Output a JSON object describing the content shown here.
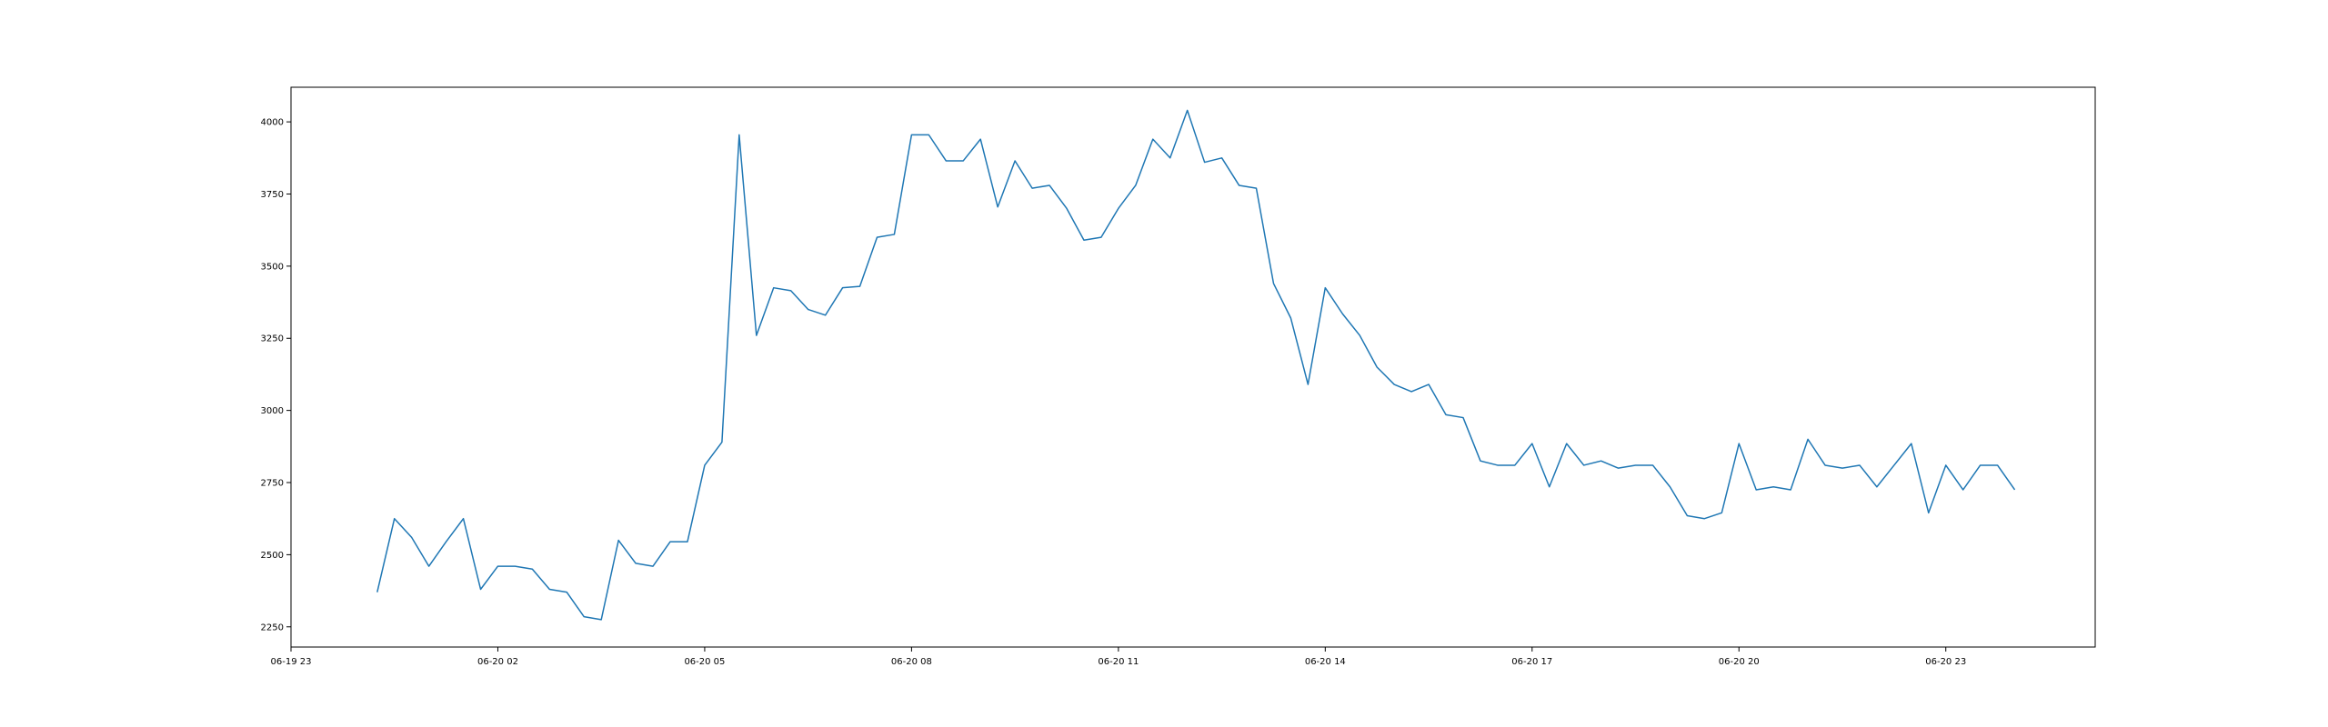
{
  "chart_data": {
    "type": "line",
    "title": "",
    "xlabel": "",
    "ylabel": "",
    "grid": false,
    "legend": false,
    "series_color": "#1f77b4",
    "xlim": [
      "2019-06-19 23:00",
      "2019-06-21 01:10"
    ],
    "ylim": [
      2180,
      4120
    ],
    "x_ticks": [
      {
        "label": "06-19 23",
        "time": "2019-06-19 23:00"
      },
      {
        "label": "06-20 02",
        "time": "2019-06-20 02:00"
      },
      {
        "label": "06-20 05",
        "time": "2019-06-20 05:00"
      },
      {
        "label": "06-20 08",
        "time": "2019-06-20 08:00"
      },
      {
        "label": "06-20 11",
        "time": "2019-06-20 11:00"
      },
      {
        "label": "06-20 14",
        "time": "2019-06-20 14:00"
      },
      {
        "label": "06-20 17",
        "time": "2019-06-20 17:00"
      },
      {
        "label": "06-20 20",
        "time": "2019-06-20 20:00"
      },
      {
        "label": "06-20 23",
        "time": "2019-06-20 23:00"
      }
    ],
    "y_ticks": [
      {
        "label": "2250",
        "value": 2250
      },
      {
        "label": "2500",
        "value": 2500
      },
      {
        "label": "2750",
        "value": 2750
      },
      {
        "label": "3000",
        "value": 3000
      },
      {
        "label": "3250",
        "value": 3250
      },
      {
        "label": "3500",
        "value": 3500
      },
      {
        "label": "3750",
        "value": 3750
      },
      {
        "label": "4000",
        "value": 4000
      }
    ],
    "x": [
      "2019-06-20 00:15",
      "2019-06-20 00:30",
      "2019-06-20 00:45",
      "2019-06-20 01:00",
      "2019-06-20 01:15",
      "2019-06-20 01:30",
      "2019-06-20 01:45",
      "2019-06-20 02:00",
      "2019-06-20 02:15",
      "2019-06-20 02:30",
      "2019-06-20 02:45",
      "2019-06-20 03:00",
      "2019-06-20 03:15",
      "2019-06-20 03:30",
      "2019-06-20 03:45",
      "2019-06-20 04:00",
      "2019-06-20 04:15",
      "2019-06-20 04:30",
      "2019-06-20 04:45",
      "2019-06-20 05:00",
      "2019-06-20 05:15",
      "2019-06-20 05:30",
      "2019-06-20 05:45",
      "2019-06-20 06:00",
      "2019-06-20 06:15",
      "2019-06-20 06:30",
      "2019-06-20 06:45",
      "2019-06-20 07:00",
      "2019-06-20 07:15",
      "2019-06-20 07:30",
      "2019-06-20 07:45",
      "2019-06-20 08:00",
      "2019-06-20 08:15",
      "2019-06-20 08:30",
      "2019-06-20 08:45",
      "2019-06-20 09:00",
      "2019-06-20 09:15",
      "2019-06-20 09:30",
      "2019-06-20 09:45",
      "2019-06-20 10:00",
      "2019-06-20 10:15",
      "2019-06-20 10:30",
      "2019-06-20 10:45",
      "2019-06-20 11:00",
      "2019-06-20 11:15",
      "2019-06-20 11:30",
      "2019-06-20 11:45",
      "2019-06-20 12:00",
      "2019-06-20 12:15",
      "2019-06-20 12:30",
      "2019-06-20 12:45",
      "2019-06-20 13:00",
      "2019-06-20 13:15",
      "2019-06-20 13:30",
      "2019-06-20 13:45",
      "2019-06-20 14:00",
      "2019-06-20 14:15",
      "2019-06-20 14:30",
      "2019-06-20 14:45",
      "2019-06-20 15:00",
      "2019-06-20 15:15",
      "2019-06-20 15:30",
      "2019-06-20 15:45",
      "2019-06-20 16:00",
      "2019-06-20 16:15",
      "2019-06-20 16:30",
      "2019-06-20 16:45",
      "2019-06-20 17:00",
      "2019-06-20 17:15",
      "2019-06-20 17:30",
      "2019-06-20 17:45",
      "2019-06-20 18:00",
      "2019-06-20 18:15",
      "2019-06-20 18:30",
      "2019-06-20 18:45",
      "2019-06-20 19:00",
      "2019-06-20 19:15",
      "2019-06-20 19:30",
      "2019-06-20 19:45",
      "2019-06-20 20:00",
      "2019-06-20 20:15",
      "2019-06-20 20:30",
      "2019-06-20 20:45",
      "2019-06-20 21:00",
      "2019-06-20 21:15",
      "2019-06-20 21:30",
      "2019-06-20 21:45",
      "2019-06-20 22:00",
      "2019-06-20 22:15",
      "2019-06-20 22:30",
      "2019-06-20 22:45",
      "2019-06-20 23:00",
      "2019-06-20 23:15",
      "2019-06-20 23:30",
      "2019-06-20 23:45",
      "2019-06-21 00:00"
    ],
    "series": [
      {
        "values": [
          2370,
          2625,
          2560,
          2460,
          2545,
          2625,
          2380,
          2460,
          2460,
          2450,
          2380,
          2370,
          2285,
          2275,
          2550,
          2470,
          2460,
          2545,
          2545,
          2810,
          2890,
          3955,
          3260,
          3425,
          3415,
          3350,
          3330,
          3425,
          3430,
          3600,
          3610,
          3955,
          3955,
          3865,
          3865,
          3940,
          3705,
          3865,
          3770,
          3780,
          3700,
          3590,
          3600,
          3700,
          3780,
          3940,
          3875,
          4040,
          3860,
          3875,
          3780,
          3770,
          3440,
          3320,
          3090,
          3425,
          3335,
          3260,
          3150,
          3090,
          3065,
          3090,
          2985,
          2975,
          2825,
          2810,
          2810,
          2885,
          2735,
          2885,
          2810,
          2825,
          2800,
          2810,
          2810,
          2735,
          2635,
          2625,
          2645,
          2885,
          2725,
          2735,
          2725,
          2900,
          2810,
          2800,
          2810,
          2735,
          2810,
          2885,
          2645,
          2810,
          2725,
          2810,
          2810,
          2725
        ]
      }
    ]
  }
}
